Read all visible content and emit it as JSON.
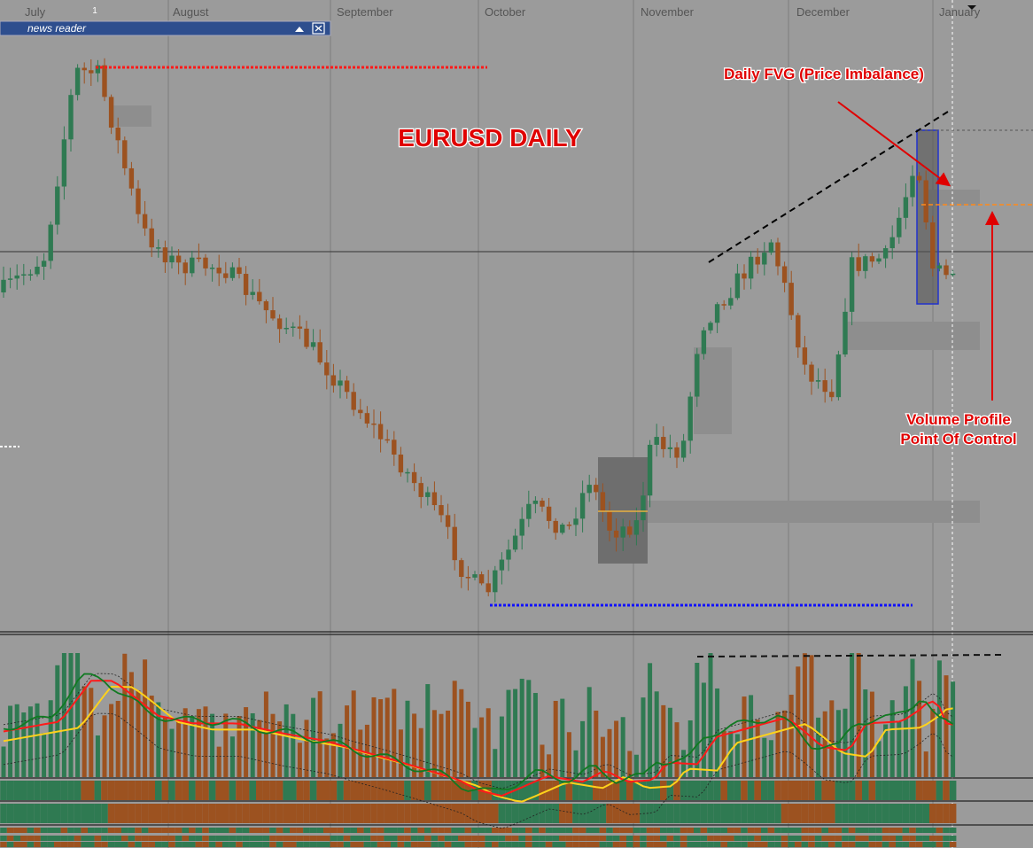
{
  "month_labels": [
    "July",
    "August",
    "September",
    "October",
    "November",
    "December",
    "January"
  ],
  "marker_label": "1",
  "news_reader": "news reader",
  "title": "EURUSD DAILY",
  "annotations": {
    "fvg": "Daily FVG (Price Imbalance)",
    "poc": [
      "Volume Profile",
      "Point Of Control"
    ]
  }
}
